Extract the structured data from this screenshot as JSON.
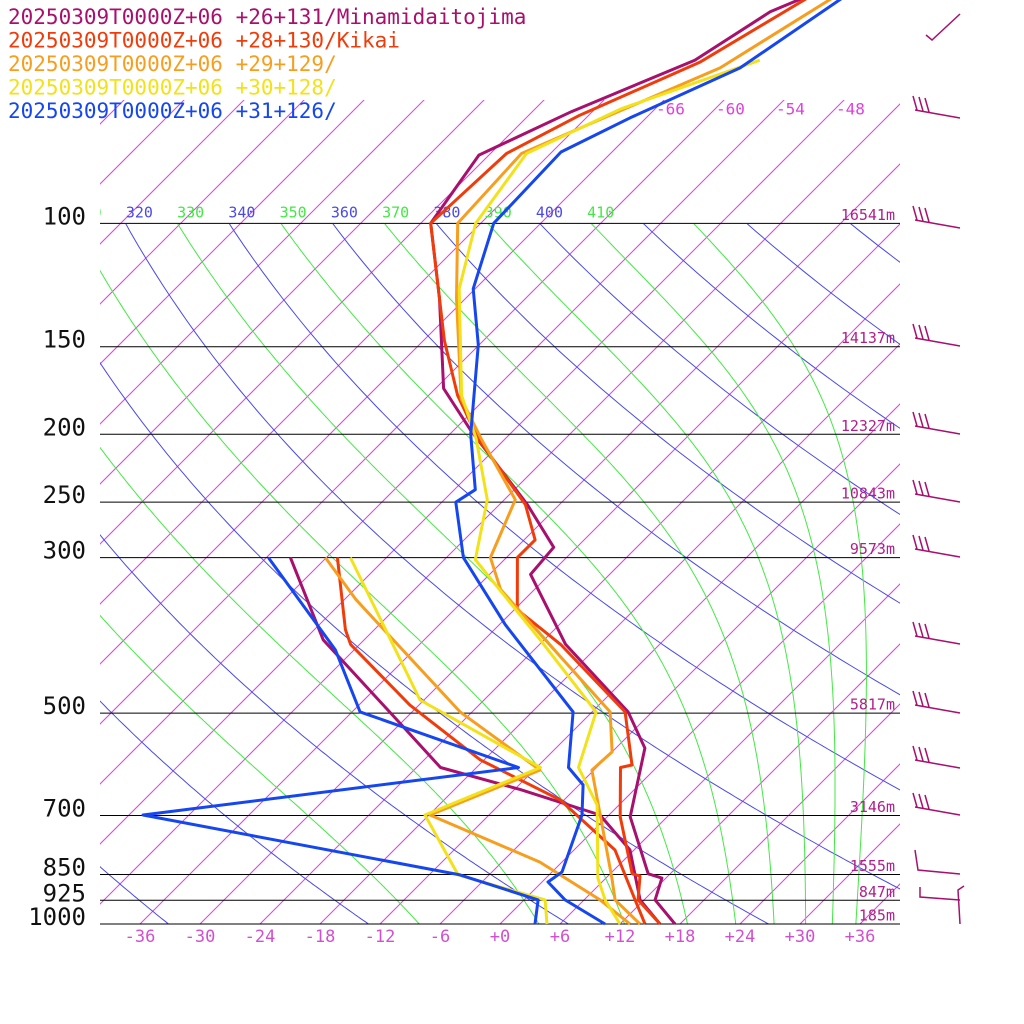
{
  "chart_data": {
    "type": "skewt",
    "xlim": [
      -40,
      40
    ],
    "ylim": [
      1000,
      48
    ],
    "log_y": true,
    "xticks": [
      -36,
      -30,
      -24,
      -18,
      -12,
      -6,
      {
        "value": 0,
        "label": "+0"
      },
      {
        "value": 6,
        "label": "+6"
      },
      {
        "value": 12,
        "label": "+12"
      },
      {
        "value": 18,
        "label": "+18"
      },
      {
        "value": 24,
        "label": "+24"
      },
      {
        "value": 30,
        "label": "+30"
      },
      {
        "value": 36,
        "label": "+36"
      }
    ],
    "yticks": [
      100,
      150,
      200,
      250,
      300,
      500,
      700,
      850,
      925,
      1000
    ],
    "height_labels": [
      "16541m",
      "14137m",
      "12327m",
      "10843m",
      "9573m",
      "5817m",
      "3146m",
      "1555m",
      "847m",
      "185m"
    ],
    "isotherms": [
      -120,
      -114,
      -108,
      -102,
      -96,
      -90,
      -84,
      -78,
      -72,
      -66,
      -60,
      -54,
      -48,
      -42,
      -36,
      -30,
      -24,
      -18,
      -12,
      -6,
      0,
      6,
      12,
      18,
      24,
      30,
      36
    ],
    "isotherm_labels": [
      -66,
      -60,
      -54,
      -48
    ],
    "isotherm_color": "#e040e0",
    "dry_adiabats": [
      240,
      260,
      280,
      300,
      320,
      340,
      360,
      380,
      400,
      420,
      440,
      460
    ],
    "dry_color": "#4a4ae6",
    "moist_adiabats": [
      270,
      290,
      310,
      330,
      350,
      370,
      390,
      410,
      430
    ],
    "moist_color": "#44e844",
    "series": [
      {
        "name": "20250309T0000Z+06 +26+131/Minamidaitojima",
        "color": "#a8106e",
        "pressure": [
          1000,
          924,
          860,
          848,
          703,
          561,
          498,
          399,
          317,
          290,
          252,
          197,
          172,
          128,
          100,
          79.9,
          69.3,
          58.5,
          49.9,
          47.8
        ],
        "values": [
          17.5,
          13.1,
          11.6,
          9.8,
          2.3,
          -3.1,
          -8.4,
          -21.4,
          -31.9,
          -32.3,
          -39.2,
          -52.4,
          -59.2,
          -68.6,
          -77,
          -79.0,
          -74.1,
          -66.9,
          -64.2,
          -62.4
        ],
        "dewpoint_pressure": [
          300,
          393,
          508,
          598,
          643,
          699,
          784,
          924,
          1000
        ],
        "dewpoint": [
          -57.6,
          -46.1,
          -31.1,
          -21.6,
          -11.4,
          -0.9,
          5.6,
          11.6,
          16.0
        ]
      },
      {
        "name": "20250309T0000Z+06 +28+130/Kikai",
        "color": "#f03c0a",
        "pressure": [
          1000,
          924,
          854,
          848,
          703,
          598,
          593,
          498,
          399,
          356,
          300,
          283,
          252,
          203,
          176,
          147,
          100,
          79.5,
          70.1,
          58.9,
          47.8
        ],
        "values": [
          16.0,
          11.4,
          9.2,
          8.2,
          1.3,
          -3.6,
          -2.7,
          -8.7,
          -21.9,
          -29.7,
          -34.9,
          -34.9,
          -39.4,
          -50.7,
          -57.1,
          -63.9,
          -77,
          -76.4,
          -72.9,
          -66.2,
          -61.9
        ],
        "dewpoint_pressure": [
          300,
          380,
          399,
          487,
          583,
          665,
          784,
          924,
          1000
        ],
        "dewpoint": [
          -52.9,
          -44.9,
          -42.9,
          -30.9,
          -18.4,
          -6.4,
          4.1,
          11.1,
          14.5
        ]
      },
      {
        "name": "20250309T0000Z+06 +29+129/",
        "color": "#f79e1e",
        "pressure": [
          1000,
          924,
          860,
          603,
          568,
          498,
          393,
          333,
          300,
          248,
          203,
          178,
          128,
          100,
          79.5,
          71.0,
          60.0,
          47.8
        ],
        "values": [
          14.0,
          9.1,
          6.6,
          -6.2,
          -6.0,
          -10.2,
          -23.9,
          -33.4,
          -37.6,
          -40.9,
          -50.4,
          -56.4,
          -66.9,
          -74.3,
          -74.9,
          -70.4,
          -63.6,
          -59.4
        ],
        "dewpoint_pressure": [
          300,
          344,
          498,
          603,
          699,
          816,
          924,
          1000
        ],
        "dewpoint": [
          -54.1,
          -46.9,
          -25.2,
          -11.4,
          -17.9,
          -2.2,
          7.6,
          13.0
        ]
      },
      {
        "name": "20250309T0000Z+06 +30+128/",
        "color": "#f2e21a",
        "pressure": [
          1000,
          924,
          860,
          676,
          598,
          498,
          393,
          302,
          248,
          203,
          176,
          124,
          100,
          79.5,
          68.6,
          58.5
        ],
        "values": [
          12.0,
          8.1,
          5.2,
          -2.2,
          -7.8,
          -11.6,
          -24.4,
          -38.9,
          -43.7,
          -50.9,
          -56.7,
          -67.6,
          -72.5,
          -74.4,
          -69.4,
          -60.4
        ],
        "dewpoint_pressure": [
          300,
          479,
          598,
          699,
          851,
          924,
          1000
        ],
        "dewpoint": [
          -51.6,
          -30.4,
          -11.6,
          -18.4,
          -9.1,
          2.1,
          4.7
        ]
      },
      {
        "name": "20250309T0000Z+06 +31+126/",
        "color": "#1546f0",
        "pressure": [
          1000,
          924,
          871,
          843,
          699,
          633,
          598,
          498,
          374,
          300,
          250,
          240,
          200,
          149,
          124,
          100,
          79.1,
          70.7,
          60.0,
          47.8
        ],
        "values": [
          10.5,
          4.1,
          0.6,
          1.0,
          -2.7,
          -5.6,
          -8.8,
          -13.9,
          -29.4,
          -40.3,
          -46.6,
          -45.9,
          -51.9,
          -60.1,
          -66.2,
          -70.7,
          -71.1,
          -67.6,
          -61.6,
          -58.4
        ],
        "dewpoint_pressure": [
          300,
          406,
          498,
          598,
          699,
          851,
          924,
          1000
        ],
        "dewpoint": [
          -59.8,
          -43.9,
          -35.2,
          -13.8,
          -46.6,
          -8.9,
          1.4,
          3.5
        ]
      }
    ]
  }
}
